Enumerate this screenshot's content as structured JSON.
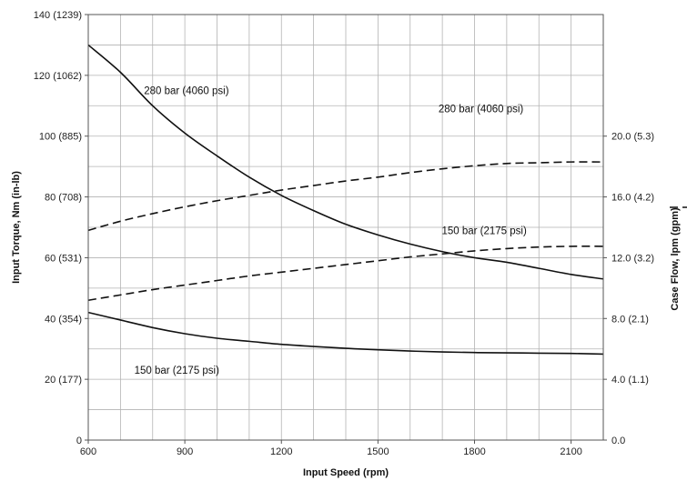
{
  "chart_data": {
    "type": "line",
    "xlabel": "Input Speed (rpm)",
    "ylabel": "Input Torque, Nm (in-lb)",
    "y2label": "Case Flow, lpm (gpm)",
    "xlim": [
      600,
      2200
    ],
    "ylim": [
      0,
      140
    ],
    "y2lim": [
      0,
      28
    ],
    "grid": true,
    "x_ticks": [
      600,
      900,
      1200,
      1500,
      1800,
      2100
    ],
    "y_ticks": [
      {
        "value": 0,
        "label": "0"
      },
      {
        "value": 20,
        "label": "20 (177)"
      },
      {
        "value": 40,
        "label": "40 (354)"
      },
      {
        "value": 60,
        "label": "60 (531)"
      },
      {
        "value": 80,
        "label": "80 (708)"
      },
      {
        "value": 100,
        "label": "100 (885)"
      },
      {
        "value": 120,
        "label": "120 (1062)"
      },
      {
        "value": 140,
        "label": "140 (1239)"
      }
    ],
    "y2_ticks": [
      {
        "value": 0,
        "label": "0.0"
      },
      {
        "value": 4,
        "label": "4.0 (1.1)"
      },
      {
        "value": 8,
        "label": "8.0 (2.1)"
      },
      {
        "value": 12,
        "label": "12.0 (3.2)"
      },
      {
        "value": 16,
        "label": "16.0 (4.2)"
      },
      {
        "value": 20,
        "label": "20.0 (5.3)"
      }
    ],
    "series": [
      {
        "name": "280 bar (4060 psi)",
        "axis": "torque",
        "style": "solid",
        "x": [
          600,
          700,
          800,
          900,
          1000,
          1100,
          1200,
          1300,
          1400,
          1500,
          1600,
          1700,
          1800,
          1900,
          2000,
          2100,
          2200
        ],
        "y": [
          130,
          121,
          110,
          101,
          93.5,
          86.5,
          80.5,
          75.5,
          71,
          67.5,
          64.5,
          62,
          60,
          58.5,
          56.5,
          54.5,
          53
        ]
      },
      {
        "name": "150 bar (2175 psi)",
        "axis": "torque",
        "style": "solid",
        "x": [
          600,
          700,
          800,
          900,
          1000,
          1100,
          1200,
          1300,
          1400,
          1500,
          1600,
          1700,
          1800,
          1900,
          2000,
          2100,
          2200
        ],
        "y": [
          42,
          39.5,
          37,
          35,
          33.5,
          32.5,
          31.5,
          30.8,
          30.2,
          29.7,
          29.3,
          29,
          28.8,
          28.7,
          28.6,
          28.5,
          28.3
        ]
      },
      {
        "name": "280 bar (4060 psi)",
        "axis": "case_flow",
        "style": "dashed",
        "x": [
          600,
          700,
          800,
          900,
          1000,
          1100,
          1200,
          1300,
          1400,
          1500,
          1600,
          1700,
          1800,
          1900,
          2000,
          2100,
          2200
        ],
        "y": [
          13.8,
          14.4,
          14.9,
          15.35,
          15.75,
          16.1,
          16.45,
          16.75,
          17.05,
          17.3,
          17.6,
          17.85,
          18.05,
          18.2,
          18.25,
          18.3,
          18.3
        ]
      },
      {
        "name": "150 bar (2175 psi)",
        "axis": "case_flow",
        "style": "dashed",
        "x": [
          600,
          700,
          800,
          900,
          1000,
          1100,
          1200,
          1300,
          1400,
          1500,
          1600,
          1700,
          1800,
          1900,
          2000,
          2100,
          2200
        ],
        "y": [
          9.2,
          9.55,
          9.9,
          10.2,
          10.5,
          10.8,
          11.05,
          11.3,
          11.55,
          11.8,
          12.05,
          12.25,
          12.45,
          12.6,
          12.7,
          12.75,
          12.75
        ]
      }
    ],
    "annotations": [
      {
        "text": "280 bar (4060 psi)",
        "series": 0,
        "x": 905,
        "y": 115
      },
      {
        "text": "150 bar (2175 psi)",
        "series": 1,
        "x": 875,
        "y": 23
      },
      {
        "text": "280 bar (4060 psi)",
        "series": 2,
        "x": 1820,
        "y": 21.8
      },
      {
        "text": "150 bar (2175 psi)",
        "series": 3,
        "x": 1830,
        "y": 13.8
      }
    ]
  }
}
